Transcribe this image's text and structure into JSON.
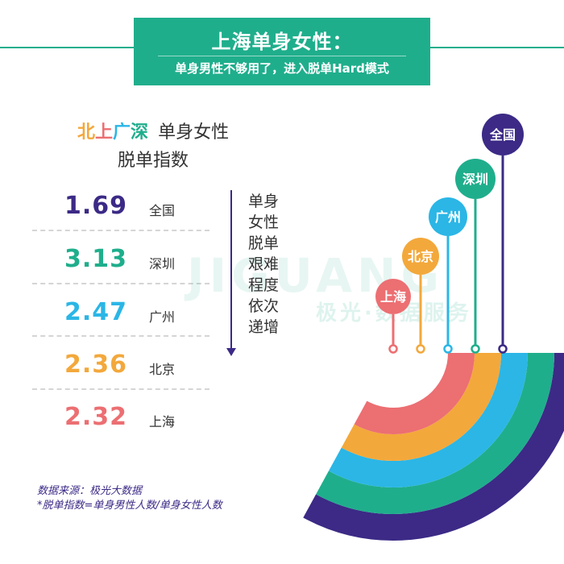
{
  "banner": {
    "title": "上海单身女性：",
    "subtitle": "单身男性不够用了，进入脱单Hard模式"
  },
  "heading": {
    "cities_colored": [
      {
        "text": "北",
        "color": "#f3a83b"
      },
      {
        "text": "上",
        "color": "#ec6f72"
      },
      {
        "text": "广",
        "color": "#2bb6e6"
      },
      {
        "text": "深",
        "color": "#1fae8c"
      }
    ],
    "line1_rest": "单身女性",
    "line2": "脱单指数"
  },
  "annotation": {
    "lines": [
      "单身",
      "女性",
      "脱单",
      "艰难",
      "程度",
      "依次",
      "递增"
    ]
  },
  "watermark": {
    "text": "JIGUANG",
    "sub": "极光·数据服务"
  },
  "footer": {
    "source": "数据来源：极光大数据",
    "note": "*脱单指数=单身男性人数/单身女性人数"
  },
  "chart_data": {
    "type": "table",
    "rows": [
      {
        "city": "全国",
        "value": 1.69,
        "display": "1.69",
        "color": "#3c2a86"
      },
      {
        "city": "深圳",
        "value": 3.13,
        "display": "3.13",
        "color": "#1fae8c"
      },
      {
        "city": "广州",
        "value": 2.47,
        "display": "2.47",
        "color": "#2bb6e6"
      },
      {
        "city": "北京",
        "value": 2.36,
        "display": "2.36",
        "color": "#f3a83b"
      },
      {
        "city": "上海",
        "value": 2.32,
        "display": "2.32",
        "color": "#ec6f72"
      }
    ],
    "arc_order_inner_to_outer": [
      "上海",
      "北京",
      "广州",
      "深圳",
      "全国"
    ]
  }
}
